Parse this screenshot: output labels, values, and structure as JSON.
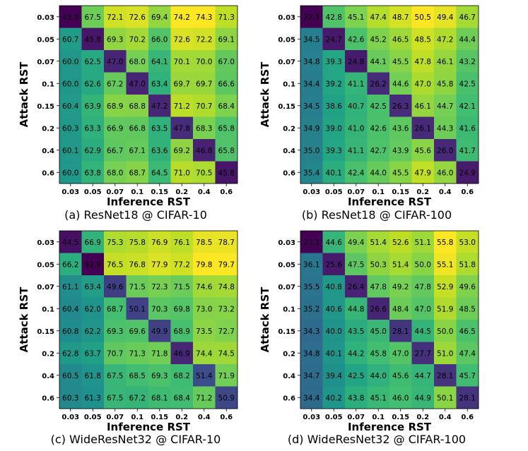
{
  "chart_data": [
    {
      "type": "heatmap",
      "title": "(a) ResNet18 @ CIFAR-10",
      "xlabel": "Inference RST",
      "ylabel": "Attack RST",
      "x_categories": [
        "0.03",
        "0.05",
        "0.07",
        "0.1",
        "0.15",
        "0.2",
        "0.4",
        "0.6"
      ],
      "y_categories": [
        "0.03",
        "0.05",
        "0.07",
        "0.1",
        "0.15",
        "0.2",
        "0.4",
        "0.6"
      ],
      "colormap": "viridis",
      "cell_labels": [
        [
          "43.9",
          "67.5",
          "72.1",
          "72.6",
          "69.4",
          "74.2",
          "74.3",
          "71.3"
        ],
        [
          "60.7",
          "45.8",
          "69.3",
          "70.2",
          "66.0",
          "72.6",
          "72.2",
          "69.1"
        ],
        [
          "60.0",
          "62.5",
          "47.0",
          "68.0",
          "64.1",
          "70.1",
          "70.0",
          "67.0"
        ],
        [
          "60.0",
          "62.6",
          "67.2",
          "47.0",
          "63.4",
          "69.7",
          "69.7",
          "66.6"
        ],
        [
          "60.4",
          "63.9",
          "68.9",
          "68.8",
          "47.2",
          "71.2",
          "70.7",
          "68.4"
        ],
        [
          "60.3",
          "63.3",
          "66.9",
          "66.8",
          "63.5",
          "47.8",
          "68.3",
          "65.8"
        ],
        [
          "60.1",
          "62.9",
          "66.7",
          "67.1",
          "63.6",
          "69.2",
          "46.8",
          "65.8"
        ],
        [
          "60.0",
          "63.8",
          "68.0",
          "68.7",
          "64.5",
          "71.0",
          "70.5",
          "45.8"
        ]
      ]
    },
    {
      "type": "heatmap",
      "title": "(b) ResNet18 @ CIFAR-100",
      "xlabel": "Inference RST",
      "ylabel": "Attack RST",
      "x_categories": [
        "0.03",
        "0.05",
        "0.07",
        "0.1",
        "0.15",
        "0.2",
        "0.4",
        "0.6"
      ],
      "y_categories": [
        "0.03",
        "0.05",
        "0.07",
        "0.1",
        "0.15",
        "0.2",
        "0.4",
        "0.6"
      ],
      "colormap": "viridis",
      "cell_labels": [
        [
          "22.7",
          "42.8",
          "45.1",
          "47.4",
          "48.7",
          "50.5",
          "49.4",
          "46.7"
        ],
        [
          "34.5",
          "24.7",
          "42.6",
          "45.2",
          "46.5",
          "48.5",
          "47.2",
          "44.4"
        ],
        [
          "34.8",
          "39.3",
          "24.8",
          "44.1",
          "45.5",
          "47.8",
          "46.1",
          "43.2"
        ],
        [
          "34.4",
          "39.2",
          "41.1",
          "26.2",
          "44.6",
          "47.0",
          "45.8",
          "42.5"
        ],
        [
          "34.5",
          "38.6",
          "40.7",
          "42.5",
          "26.3",
          "46.1",
          "44.7",
          "42.1"
        ],
        [
          "34.9",
          "39.0",
          "41.0",
          "42.6",
          "43.6",
          "26.1",
          "44.3",
          "41.6"
        ],
        [
          "35.0",
          "39.3",
          "41.1",
          "42.7",
          "43.9",
          "45.6",
          "26.0",
          "41.7"
        ],
        [
          "35.4",
          "40.1",
          "42.4",
          "44.0",
          "45.5",
          "47.9",
          "46.0",
          "24.9"
        ]
      ]
    },
    {
      "type": "heatmap",
      "title": "(c) WideResNet32 @ CIFAR-10",
      "xlabel": "Inference RST",
      "ylabel": "Attack RST",
      "x_categories": [
        "0.03",
        "0.05",
        "0.07",
        "0.1",
        "0.15",
        "0.2",
        "0.4",
        "0.6"
      ],
      "y_categories": [
        "0.03",
        "0.05",
        "0.07",
        "0.1",
        "0.15",
        "0.2",
        "0.4",
        "0.6"
      ],
      "colormap": "viridis",
      "cell_labels": [
        [
          "44.5",
          "66.9",
          "75.3",
          "75.8",
          "76.9",
          "76.1",
          "78.5",
          "78.7"
        ],
        [
          "66.2",
          "42.9",
          "76.5",
          "76.8",
          "77.9",
          "77.2",
          "79.8",
          "79.7"
        ],
        [
          "61.1",
          "63.4",
          "49.6",
          "71.5",
          "72.3",
          "71.5",
          "74.6",
          "74.8"
        ],
        [
          "60.4",
          "62.0",
          "68.7",
          "50.1",
          "70.3",
          "69.8",
          "73.0",
          "73.2"
        ],
        [
          "60.8",
          "62.2",
          "69.3",
          "69.6",
          "49.9",
          "68.9",
          "73.5",
          "72.7"
        ],
        [
          "62.8",
          "63.7",
          "70.7",
          "71.3",
          "71.8",
          "46.9",
          "74.4",
          "74.5"
        ],
        [
          "60.5",
          "61.8",
          "67.5",
          "68.5",
          "69.3",
          "68.2",
          "51.4",
          "71.9"
        ],
        [
          "60.3",
          "61.3",
          "67.5",
          "67.2",
          "68.1",
          "68.4",
          "71.2",
          "50.9"
        ]
      ]
    },
    {
      "type": "heatmap",
      "title": "(d) WideResNet32 @ CIFAR-100",
      "xlabel": "Inference RST",
      "ylabel": "Attack RST",
      "x_categories": [
        "0.03",
        "0.05",
        "0.07",
        "0.1",
        "0.15",
        "0.2",
        "0.4",
        "0.6"
      ],
      "y_categories": [
        "0.03",
        "0.05",
        "0.07",
        "0.1",
        "0.15",
        "0.2",
        "0.4",
        "0.6"
      ],
      "colormap": "viridis",
      "cell_labels": [
        [
          "23.1",
          "44.6",
          "49.4",
          "51.4",
          "52.6",
          "51.1",
          "55.8",
          "53.0"
        ],
        [
          "36.1",
          "25.6",
          "47.5",
          "50.3",
          "51.4",
          "50.0",
          "55.1",
          "51.8"
        ],
        [
          "35.5",
          "40.8",
          "26.4",
          "47.8",
          "49.2",
          "47.8",
          "52.9",
          "49.6"
        ],
        [
          "35.2",
          "40.6",
          "44.8",
          "26.6",
          "48.4",
          "47.0",
          "51.9",
          "48.5"
        ],
        [
          "34.3",
          "40.0",
          "43.5",
          "45.0",
          "28.1",
          "44.5",
          "50.0",
          "46.5"
        ],
        [
          "34.8",
          "40.1",
          "44.2",
          "45.8",
          "47.0",
          "27.7",
          "51.0",
          "47.4"
        ],
        [
          "34.7",
          "39.4",
          "42.5",
          "44.0",
          "45.6",
          "44.7",
          "28.1",
          "45.7"
        ],
        [
          "34.4",
          "40.2",
          "43.8",
          "45.1",
          "46.0",
          "44.9",
          "50.1",
          "28.1"
        ]
      ]
    }
  ]
}
